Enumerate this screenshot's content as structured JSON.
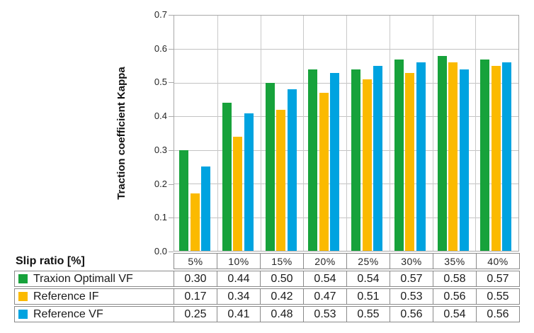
{
  "colors": {
    "traxion_green": "#17a23b",
    "reference_if_orange": "#fbba00",
    "reference_vf_blue": "#00a3e0",
    "gridline": "#c3c3c3",
    "axis_line": "#a9a9a9",
    "table_border": "#8a8a8a"
  },
  "chart_data": {
    "type": "bar",
    "title": "",
    "xlabel": "Slip ratio [%]",
    "ylabel": "Traction coefficient Kappa",
    "ylim": [
      0,
      0.7
    ],
    "ytick_step": 0.1,
    "yticks": [
      "0.0",
      "0.1",
      "0.2",
      "0.3",
      "0.4",
      "0.5",
      "0.6",
      "0.7"
    ],
    "grid": true,
    "legend_position": "table-below-chart",
    "categories": [
      "5%",
      "10%",
      "15%",
      "20%",
      "25%",
      "30%",
      "35%",
      "40%"
    ],
    "series": [
      {
        "name": "Traxion Optimall VF",
        "color": "#17a23b",
        "values": [
          0.3,
          0.44,
          0.5,
          0.54,
          0.54,
          0.57,
          0.58,
          0.57
        ]
      },
      {
        "name": "Reference IF",
        "color": "#fbba00",
        "values": [
          0.17,
          0.34,
          0.42,
          0.47,
          0.51,
          0.53,
          0.56,
          0.55
        ]
      },
      {
        "name": "Reference VF",
        "color": "#00a3e0",
        "values": [
          0.25,
          0.41,
          0.48,
          0.53,
          0.55,
          0.56,
          0.54,
          0.56
        ]
      }
    ]
  },
  "y_axis": {
    "label": "Traction coefficient Kappa"
  },
  "table": {
    "row_header_label": "Slip ratio [%]",
    "column_headers": [
      "5%",
      "10%",
      "15%",
      "20%",
      "25%",
      "30%",
      "35%",
      "40%"
    ],
    "rows": [
      {
        "name": "Traxion Optimall VF",
        "values": [
          "0.30",
          "0.44",
          "0.50",
          "0.54",
          "0.54",
          "0.57",
          "0.58",
          "0.57"
        ]
      },
      {
        "name": "Reference IF",
        "values": [
          "0.17",
          "0.34",
          "0.42",
          "0.47",
          "0.51",
          "0.53",
          "0.56",
          "0.55"
        ]
      },
      {
        "name": "Reference VF",
        "values": [
          "0.25",
          "0.41",
          "0.48",
          "0.53",
          "0.55",
          "0.56",
          "0.54",
          "0.56"
        ]
      }
    ]
  }
}
